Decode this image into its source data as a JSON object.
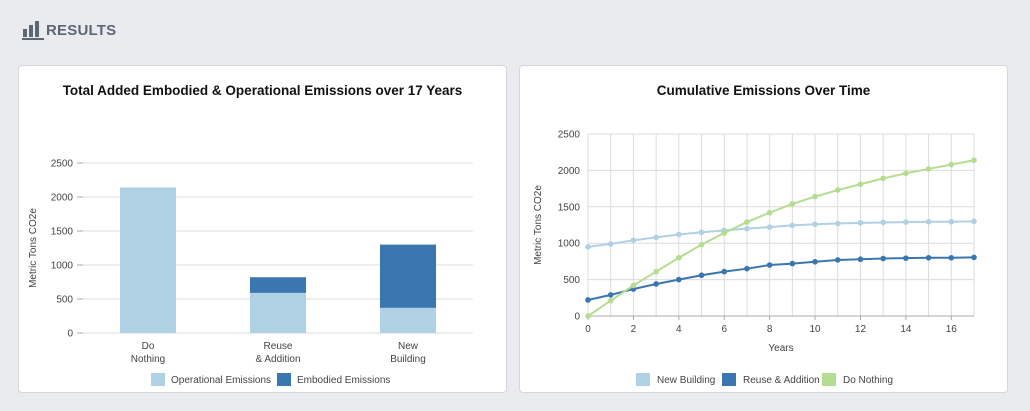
{
  "header": {
    "title": "RESULTS",
    "icon": "bar-chart-icon"
  },
  "colors": {
    "light_blue": "#b0d0e4",
    "dark_blue": "#3a76b0",
    "green": "#b5dd90",
    "grid": "#dcdcdc",
    "axis": "#aaaaaa"
  },
  "chart_data": [
    {
      "type": "bar",
      "stacked": true,
      "title": "Total Added Embodied & Operational Emissions over 17 Years",
      "xlabel": "",
      "ylabel": "Metric Tons CO2e",
      "ylim": [
        0,
        2500
      ],
      "yticks": [
        0,
        500,
        1000,
        1500,
        2000,
        2500
      ],
      "categories": [
        [
          "Do",
          "Nothing"
        ],
        [
          "Reuse",
          "& Addition"
        ],
        [
          "New",
          "Building"
        ]
      ],
      "series": [
        {
          "name": "Operational Emissions",
          "color": "#b0d0e4",
          "values": [
            2140,
            590,
            370
          ]
        },
        {
          "name": "Embodied Emissions",
          "color": "#3a76b0",
          "values": [
            0,
            230,
            930
          ]
        }
      ],
      "legend": "bottom",
      "grid": true
    },
    {
      "type": "line",
      "title": "Cumulative Emissions Over Time",
      "xlabel": "Years",
      "ylabel": "Metric Tons CO2e",
      "xlim": [
        0,
        17
      ],
      "ylim": [
        0,
        2500
      ],
      "xticks": [
        0,
        2,
        4,
        6,
        8,
        10,
        12,
        14,
        16
      ],
      "yticks": [
        0,
        500,
        1000,
        1500,
        2000,
        2500
      ],
      "x": [
        0,
        1,
        2,
        3,
        4,
        5,
        6,
        7,
        8,
        9,
        10,
        11,
        12,
        13,
        14,
        15,
        16,
        17
      ],
      "series": [
        {
          "name": "New Building",
          "color": "#b0d0e4",
          "values": [
            950,
            990,
            1040,
            1080,
            1120,
            1150,
            1175,
            1200,
            1220,
            1245,
            1260,
            1270,
            1280,
            1285,
            1290,
            1295,
            1295,
            1300
          ]
        },
        {
          "name": "Reuse & Addition",
          "color": "#3a76b0",
          "values": [
            220,
            290,
            370,
            440,
            500,
            560,
            610,
            650,
            700,
            720,
            745,
            770,
            780,
            790,
            795,
            800,
            800,
            805
          ]
        },
        {
          "name": "Do Nothing",
          "color": "#b5dd90",
          "values": [
            0,
            210,
            420,
            610,
            800,
            980,
            1140,
            1290,
            1420,
            1540,
            1640,
            1730,
            1810,
            1890,
            1960,
            2020,
            2080,
            2140
          ]
        }
      ],
      "legend": "bottom",
      "grid": true
    }
  ]
}
